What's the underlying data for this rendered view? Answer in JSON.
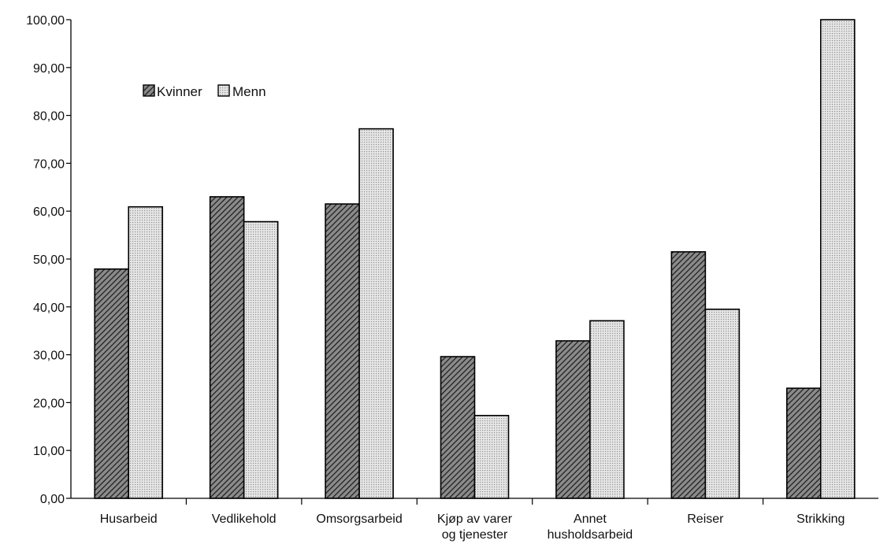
{
  "chart_data": {
    "type": "bar",
    "title": "",
    "xlabel": "",
    "ylabel": "",
    "ylim": [
      0,
      100
    ],
    "yticks": [
      "0,00",
      "10,00",
      "20,00",
      "30,00",
      "40,00",
      "50,00",
      "60,00",
      "70,00",
      "80,00",
      "90,00",
      "100,00"
    ],
    "categories": [
      [
        "Husarbeid"
      ],
      [
        "Vedlikehold"
      ],
      [
        "Omsorgsarbeid"
      ],
      [
        "Kjøp av varer",
        "og tjenester"
      ],
      [
        "Annet",
        "husholdsarbeid"
      ],
      [
        "Reiser"
      ],
      [
        "Strikking"
      ]
    ],
    "series": [
      {
        "name": "Kvinner",
        "values": [
          47.9,
          63.0,
          61.5,
          29.6,
          32.9,
          51.5,
          23.0
        ],
        "pattern": "hatched",
        "color": "#555555"
      },
      {
        "name": "Menn",
        "values": [
          60.9,
          57.8,
          77.2,
          17.3,
          37.1,
          39.5,
          100.0
        ],
        "pattern": "dotted",
        "color": "#cfcfcf"
      }
    ],
    "legend": {
      "position": "top-left",
      "entries": [
        "Kvinner",
        "Menn"
      ]
    },
    "grid": false
  }
}
